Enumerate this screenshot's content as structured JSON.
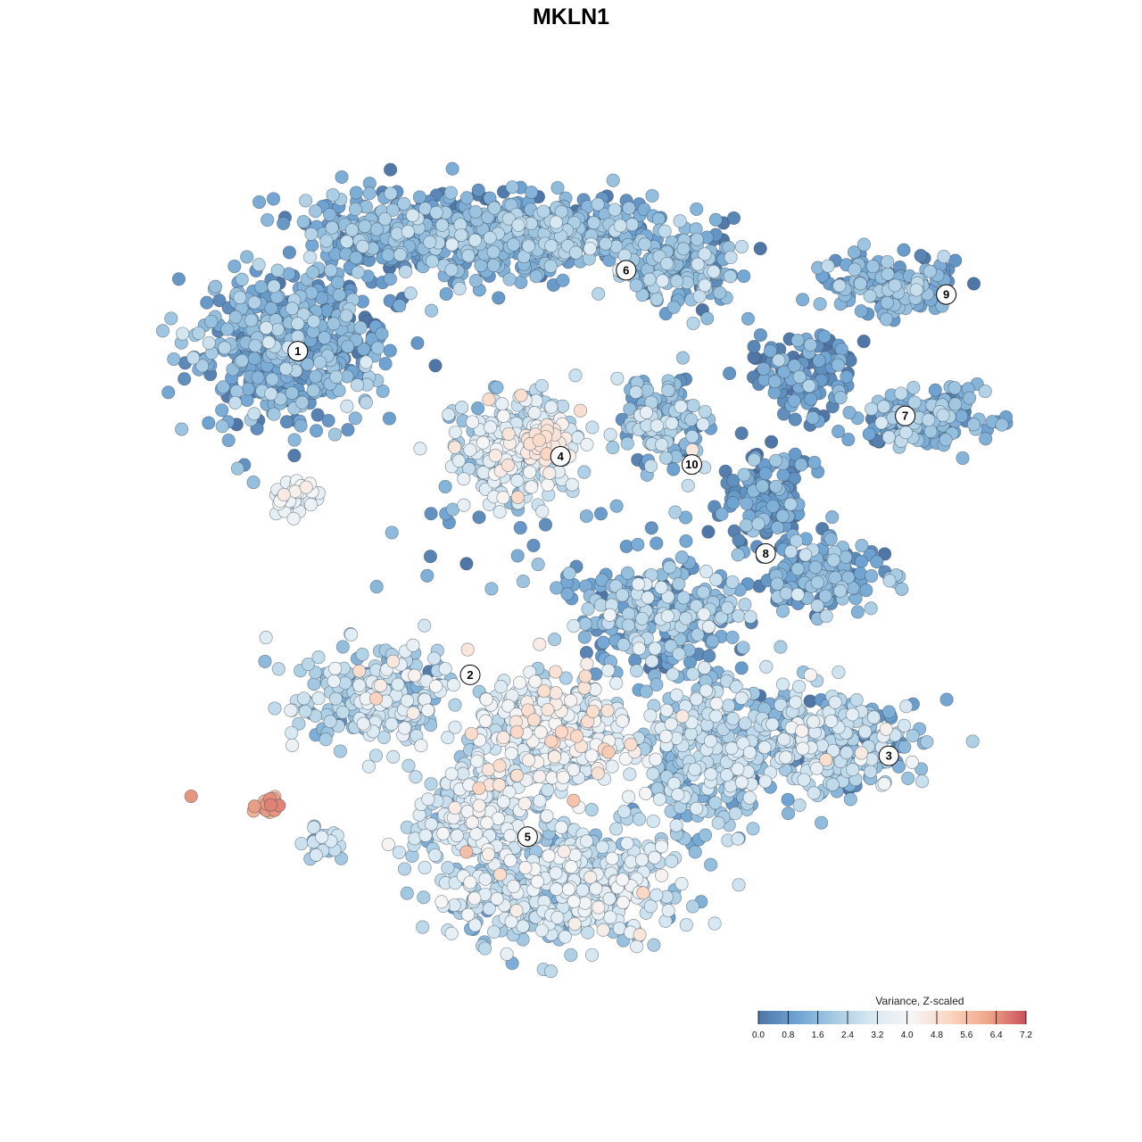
{
  "chart_data": {
    "type": "scatter",
    "title": "MKLN1",
    "xlabel": "",
    "ylabel": "",
    "grid": false,
    "legend": {
      "title": "Variance, Z-scaled",
      "placement": "bottom-right",
      "ticks": [
        "0.0",
        "0.8",
        "1.6",
        "2.4",
        "3.2",
        "4.0",
        "4.8",
        "5.6",
        "6.4",
        "7.2"
      ],
      "range": [
        0.0,
        7.2
      ],
      "colors": [
        "#4f76a6",
        "#6ea3d2",
        "#a6cbe3",
        "#d9e9f3",
        "#f6f6f6",
        "#fbd6c2",
        "#f0a78a",
        "#c9505b"
      ]
    },
    "clusters": [
      {
        "label": "1",
        "x": 0.14,
        "y": 0.77,
        "mean": 1.1
      },
      {
        "label": "2",
        "x": 0.35,
        "y": 0.37,
        "mean": 2.4
      },
      {
        "label": "3",
        "x": 0.86,
        "y": 0.27,
        "mean": 2.2
      },
      {
        "label": "4",
        "x": 0.46,
        "y": 0.64,
        "mean": 3.2
      },
      {
        "label": "5",
        "x": 0.42,
        "y": 0.17,
        "mean": 2.6
      },
      {
        "label": "6",
        "x": 0.54,
        "y": 0.87,
        "mean": 1.1
      },
      {
        "label": "7",
        "x": 0.88,
        "y": 0.69,
        "mean": 1.3
      },
      {
        "label": "8",
        "x": 0.71,
        "y": 0.52,
        "mean": 1.2
      },
      {
        "label": "9",
        "x": 0.93,
        "y": 0.84,
        "mean": 1.2
      },
      {
        "label": "10",
        "x": 0.62,
        "y": 0.63,
        "mean": 1.5
      }
    ],
    "highlights": [
      {
        "group": "outlier-red-cluster",
        "x": 0.01,
        "y": 0.22,
        "value": 6.4
      },
      {
        "group": "core-4",
        "x": 0.46,
        "y": 0.64,
        "value": 4.6
      },
      {
        "group": "core-2-5",
        "x": 0.44,
        "y": 0.35,
        "value": 4.9
      }
    ]
  }
}
